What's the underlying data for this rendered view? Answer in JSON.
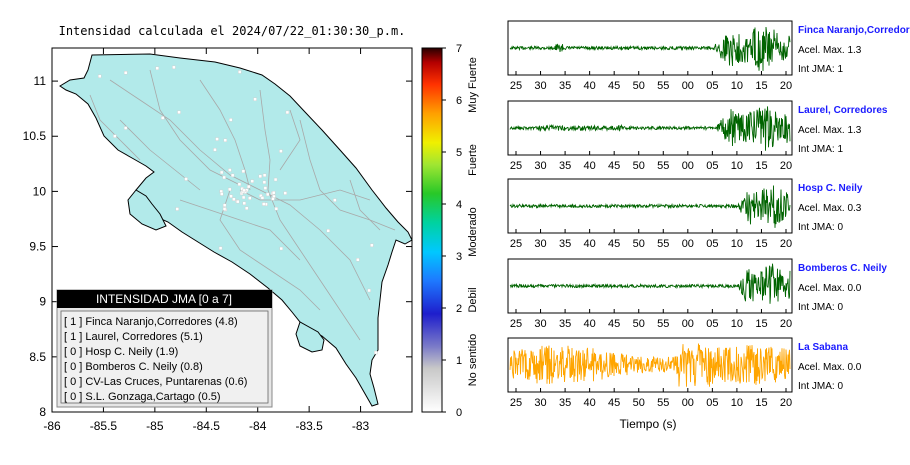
{
  "map": {
    "title": "Intensidad calculada el 2024/07/22_01:30:30_p.m.",
    "x_ticks": [
      "-86",
      "-85.5",
      "-85",
      "-84.5",
      "-84",
      "-83.5",
      "-83"
    ],
    "y_ticks": [
      "11",
      "10.5",
      "10",
      "9.5",
      "9",
      "8.5",
      "8"
    ],
    "xlim": [
      -86,
      -82.5
    ],
    "ylim": [
      8,
      11.3
    ],
    "land_color": "#b2eaea",
    "road_color": "#aaaaaa"
  },
  "legend": {
    "title": "INTENSIDAD JMA [0 a 7]",
    "items": [
      "[ 1 ]  Finca Naranjo,Corredores (4.8)",
      "[ 1 ]  Laurel, Corredores (5.1)",
      "[ 0 ]  Hosp C. Neily (1.9)",
      "[ 0 ]  Bomberos C. Neily (0.8)",
      "[ 0 ]  CV-Las Cruces, Puntarenas (0.6)",
      "[ 0 ]  S.L. Gonzaga,Cartago (0.5)"
    ]
  },
  "colorbar": {
    "ticks": [
      "0",
      "1",
      "2",
      "3",
      "4",
      "5",
      "6",
      "7"
    ],
    "labels": [
      "No sentido",
      "Debil",
      "Moderado",
      "Fuerte",
      "Muy Fuerte"
    ]
  },
  "waveforms": {
    "x_ticks": [
      "25",
      "30",
      "35",
      "40",
      "45",
      "50",
      "55",
      "00",
      "05",
      "10",
      "15",
      "20"
    ],
    "xlabel": "Tiempo (s)",
    "stations": [
      {
        "name": "Finca Naranjo,Corredores",
        "accel": "Acel. Max. 1.3",
        "jma": "Int JMA: 1",
        "color": "#006400",
        "onset": 0.72
      },
      {
        "name": "Laurel, Corredores",
        "accel": "Acel. Max. 1.3",
        "jma": "Int JMA: 1",
        "color": "#006400",
        "onset": 0.73
      },
      {
        "name": "Hosp C. Neily",
        "accel": "Acel. Max. 0.3",
        "jma": "Int JMA: 0",
        "color": "#006400",
        "onset": 0.81
      },
      {
        "name": "Bomberos C. Neily",
        "accel": "Acel. Max. 0.0",
        "jma": "Int JMA: 0",
        "color": "#006400",
        "onset": 0.81
      },
      {
        "name": "La Sabana",
        "accel": "Acel. Max. 0.0",
        "jma": "Int JMA: 0",
        "color": "#ffa500",
        "onset": 0.0
      }
    ]
  },
  "chart_data": [
    {
      "type": "scatter",
      "title": "Intensidad calculada el 2024/07/22_01:30:30_p.m.",
      "xlabel": "",
      "ylabel": "",
      "xlim": [
        -86,
        -82.5
      ],
      "ylim": [
        8,
        11.3
      ],
      "grid": false
    },
    {
      "type": "line",
      "title": "",
      "xlabel": "Tiempo (s)",
      "x": [
        "25",
        "30",
        "35",
        "40",
        "45",
        "50",
        "55",
        "00",
        "05",
        "10",
        "15",
        "20"
      ],
      "series": [
        {
          "name": "Finca Naranjo,Corredores",
          "max_accel": 1.3,
          "jma": 1
        },
        {
          "name": "Laurel, Corredores",
          "max_accel": 1.3,
          "jma": 1
        },
        {
          "name": "Hosp C. Neily",
          "max_accel": 0.3,
          "jma": 0
        },
        {
          "name": "Bomberos C. Neily",
          "max_accel": 0.0,
          "jma": 0
        },
        {
          "name": "La Sabana",
          "max_accel": 0.0,
          "jma": 0
        }
      ]
    }
  ]
}
